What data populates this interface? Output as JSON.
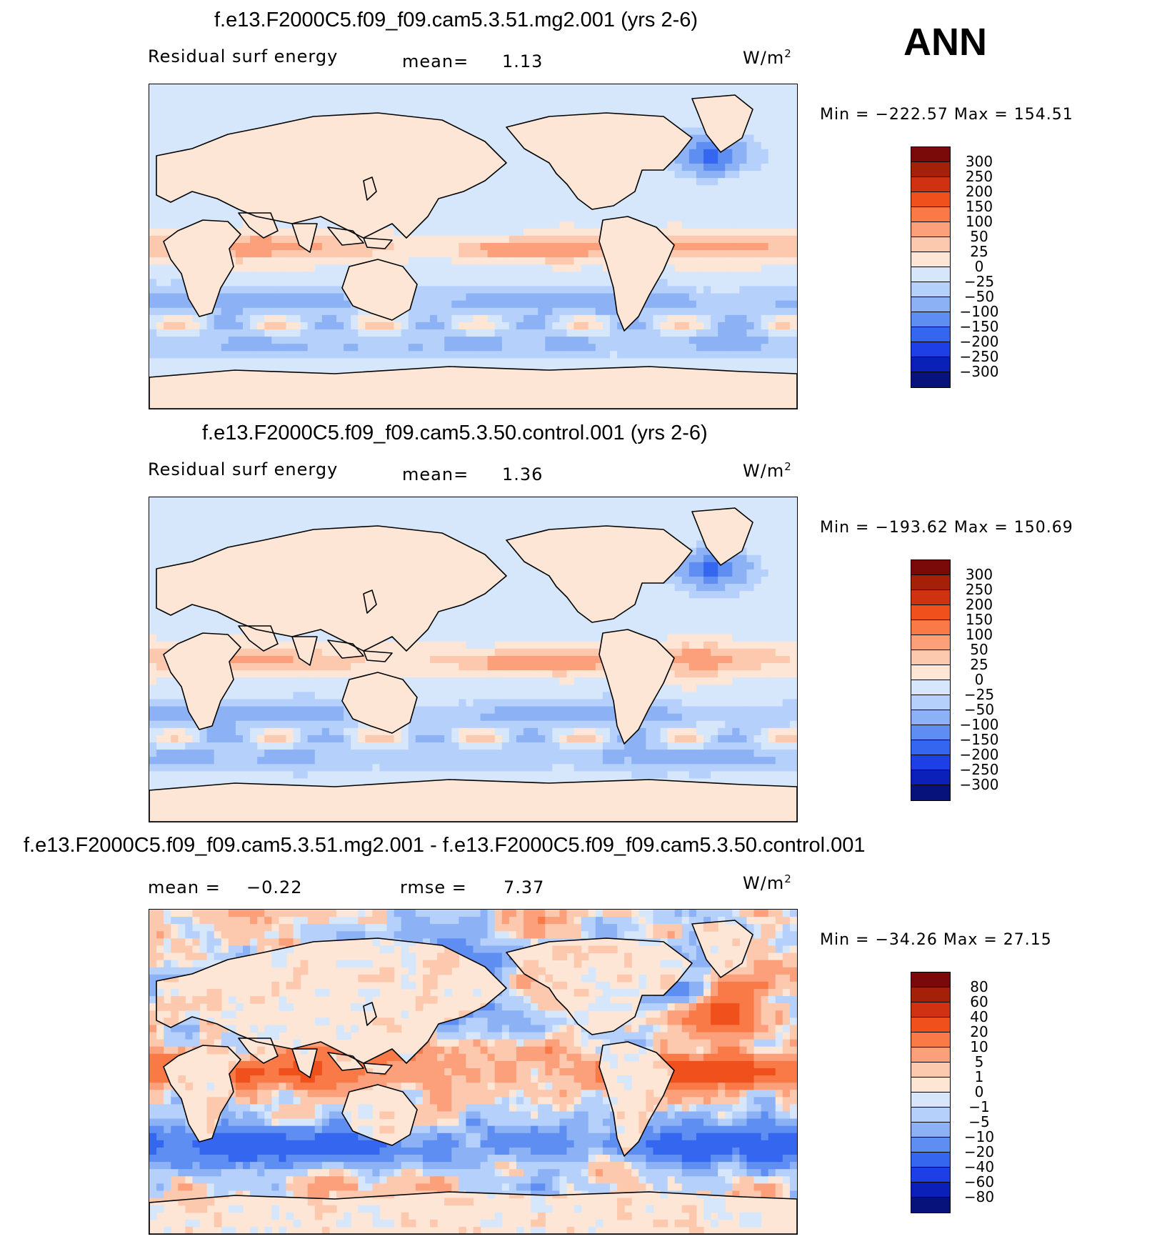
{
  "season": "ANN",
  "units_base": "W/m",
  "units_exp": "2",
  "chart_data": [
    {
      "type": "heatmap",
      "title": "f.e13.F2000C5.f09_f09.cam5.3.51.mg2.001 (yrs 2-6)",
      "left_label": "Residual surf energy",
      "stat1_label": "mean=",
      "stat1_value": "1.13",
      "minmax": "Min = −222.57 Max = 154.51",
      "min": -222.57,
      "max": 154.51,
      "levels": [
        "300",
        "250",
        "200",
        "150",
        "100",
        "50",
        "25",
        "0",
        "−25",
        "−50",
        "−100",
        "−150",
        "−200",
        "−250",
        "−300"
      ],
      "colors": [
        "#7a0a0a",
        "#a52008",
        "#cf3210",
        "#f0501c",
        "#f97a46",
        "#fba07a",
        "#fdc9ae",
        "#fde6d6",
        "#d6e6fb",
        "#b4d0fb",
        "#8cb2f5",
        "#5e8ef2",
        "#3566f0",
        "#1f3fe6",
        "#0a20b8",
        "#07137a"
      ],
      "field": "model1"
    },
    {
      "type": "heatmap",
      "title": "f.e13.F2000C5.f09_f09.cam5.3.50.control.001 (yrs 2-6)",
      "left_label": "Residual surf energy",
      "stat1_label": "mean=",
      "stat1_value": "1.36",
      "minmax": "Min = −193.62 Max = 150.69",
      "min": -193.62,
      "max": 150.69,
      "levels": [
        "300",
        "250",
        "200",
        "150",
        "100",
        "50",
        "25",
        "0",
        "−25",
        "−50",
        "−100",
        "−150",
        "−200",
        "−250",
        "−300"
      ],
      "colors": [
        "#7a0a0a",
        "#a52008",
        "#cf3210",
        "#f0501c",
        "#f97a46",
        "#fba07a",
        "#fdc9ae",
        "#fde6d6",
        "#d6e6fb",
        "#b4d0fb",
        "#8cb2f5",
        "#5e8ef2",
        "#3566f0",
        "#1f3fe6",
        "#0a20b8",
        "#07137a"
      ],
      "field": "model2"
    },
    {
      "type": "heatmap",
      "title": "f.e13.F2000C5.f09_f09.cam5.3.51.mg2.001 - f.e13.F2000C5.f09_f09.cam5.3.50.control.001",
      "left_label": "mean =",
      "left_value": "−0.22",
      "stat1_label": "rmse =",
      "stat1_value": "7.37",
      "minmax": "Min = −34.26 Max = 27.15",
      "min": -34.26,
      "max": 27.15,
      "levels": [
        "80",
        "60",
        "40",
        "20",
        "10",
        "5",
        "1",
        "0",
        "−1",
        "−5",
        "−10",
        "−20",
        "−40",
        "−60",
        "−80"
      ],
      "colors": [
        "#7a0a0a",
        "#a52008",
        "#cf3210",
        "#f0501c",
        "#f97a46",
        "#fba07a",
        "#fdc9ae",
        "#fde6d6",
        "#d6e6fb",
        "#b4d0fb",
        "#8cb2f5",
        "#5e8ef2",
        "#3566f0",
        "#1f3fe6",
        "#0a20b8",
        "#07137a"
      ],
      "field": "diff"
    }
  ]
}
